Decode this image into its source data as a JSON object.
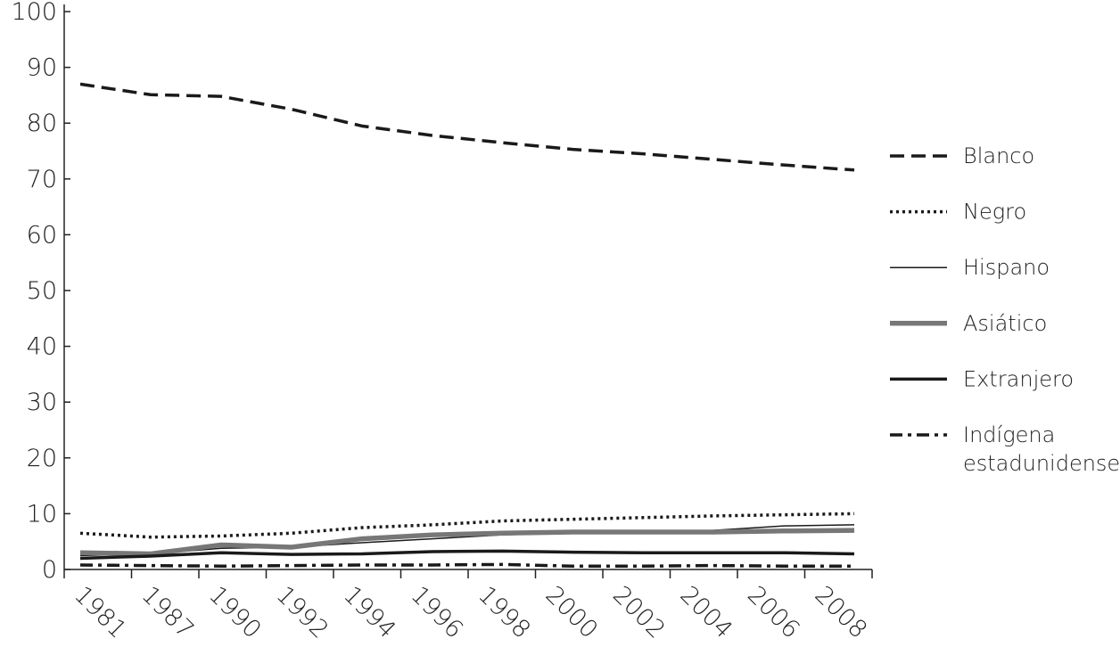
{
  "chart_data": {
    "type": "line",
    "categories": [
      "1981",
      "1987",
      "1990",
      "1992",
      "1994",
      "1996",
      "1998",
      "2000",
      "2002",
      "2004",
      "2006",
      "2008"
    ],
    "ylim": [
      0,
      100
    ],
    "yticks": [
      0,
      10,
      20,
      30,
      40,
      50,
      60,
      70,
      80,
      90,
      100
    ],
    "grid": false,
    "legend": "right",
    "series": [
      {
        "name": "Blanco",
        "color": "#1a1a1a",
        "dash": "dashed",
        "width": 3.5,
        "values": [
          87,
          85.1,
          84.8,
          82.5,
          79.5,
          77.8,
          76.5,
          75.3,
          74.5,
          73.5,
          72.5,
          71.6
        ]
      },
      {
        "name": "Negro",
        "color": "#1a1a1a",
        "dash": "dotted",
        "width": 3.5,
        "values": [
          6.5,
          5.8,
          6.0,
          6.5,
          7.5,
          8.0,
          8.7,
          9.0,
          9.3,
          9.6,
          9.8,
          10.0
        ]
      },
      {
        "name": "Hispano",
        "color": "#1a1a1a",
        "dash": "solid",
        "width": 1.5,
        "values": [
          2.5,
          2.8,
          3.8,
          4.0,
          4.8,
          5.5,
          6.2,
          6.6,
          6.7,
          7.0,
          7.8,
          8.0
        ]
      },
      {
        "name": "Asiático",
        "color": "#777777",
        "dash": "solid",
        "width": 5.5,
        "values": [
          3.0,
          2.8,
          4.4,
          4.0,
          5.5,
          6.2,
          6.5,
          6.7,
          6.7,
          6.7,
          6.9,
          7.0
        ]
      },
      {
        "name": "Extranjero",
        "color": "#1a1a1a",
        "dash": "solid",
        "width": 3.5,
        "values": [
          2.0,
          2.4,
          3.0,
          2.7,
          2.8,
          3.2,
          3.3,
          3.1,
          3.0,
          3.0,
          3.0,
          2.8
        ]
      },
      {
        "name": "Indígena estadunidense",
        "color": "#1a1a1a",
        "dash": "dashdot",
        "width": 3.5,
        "values": [
          0.8,
          0.7,
          0.6,
          0.7,
          0.8,
          0.8,
          0.9,
          0.6,
          0.6,
          0.7,
          0.6,
          0.6
        ]
      }
    ]
  }
}
